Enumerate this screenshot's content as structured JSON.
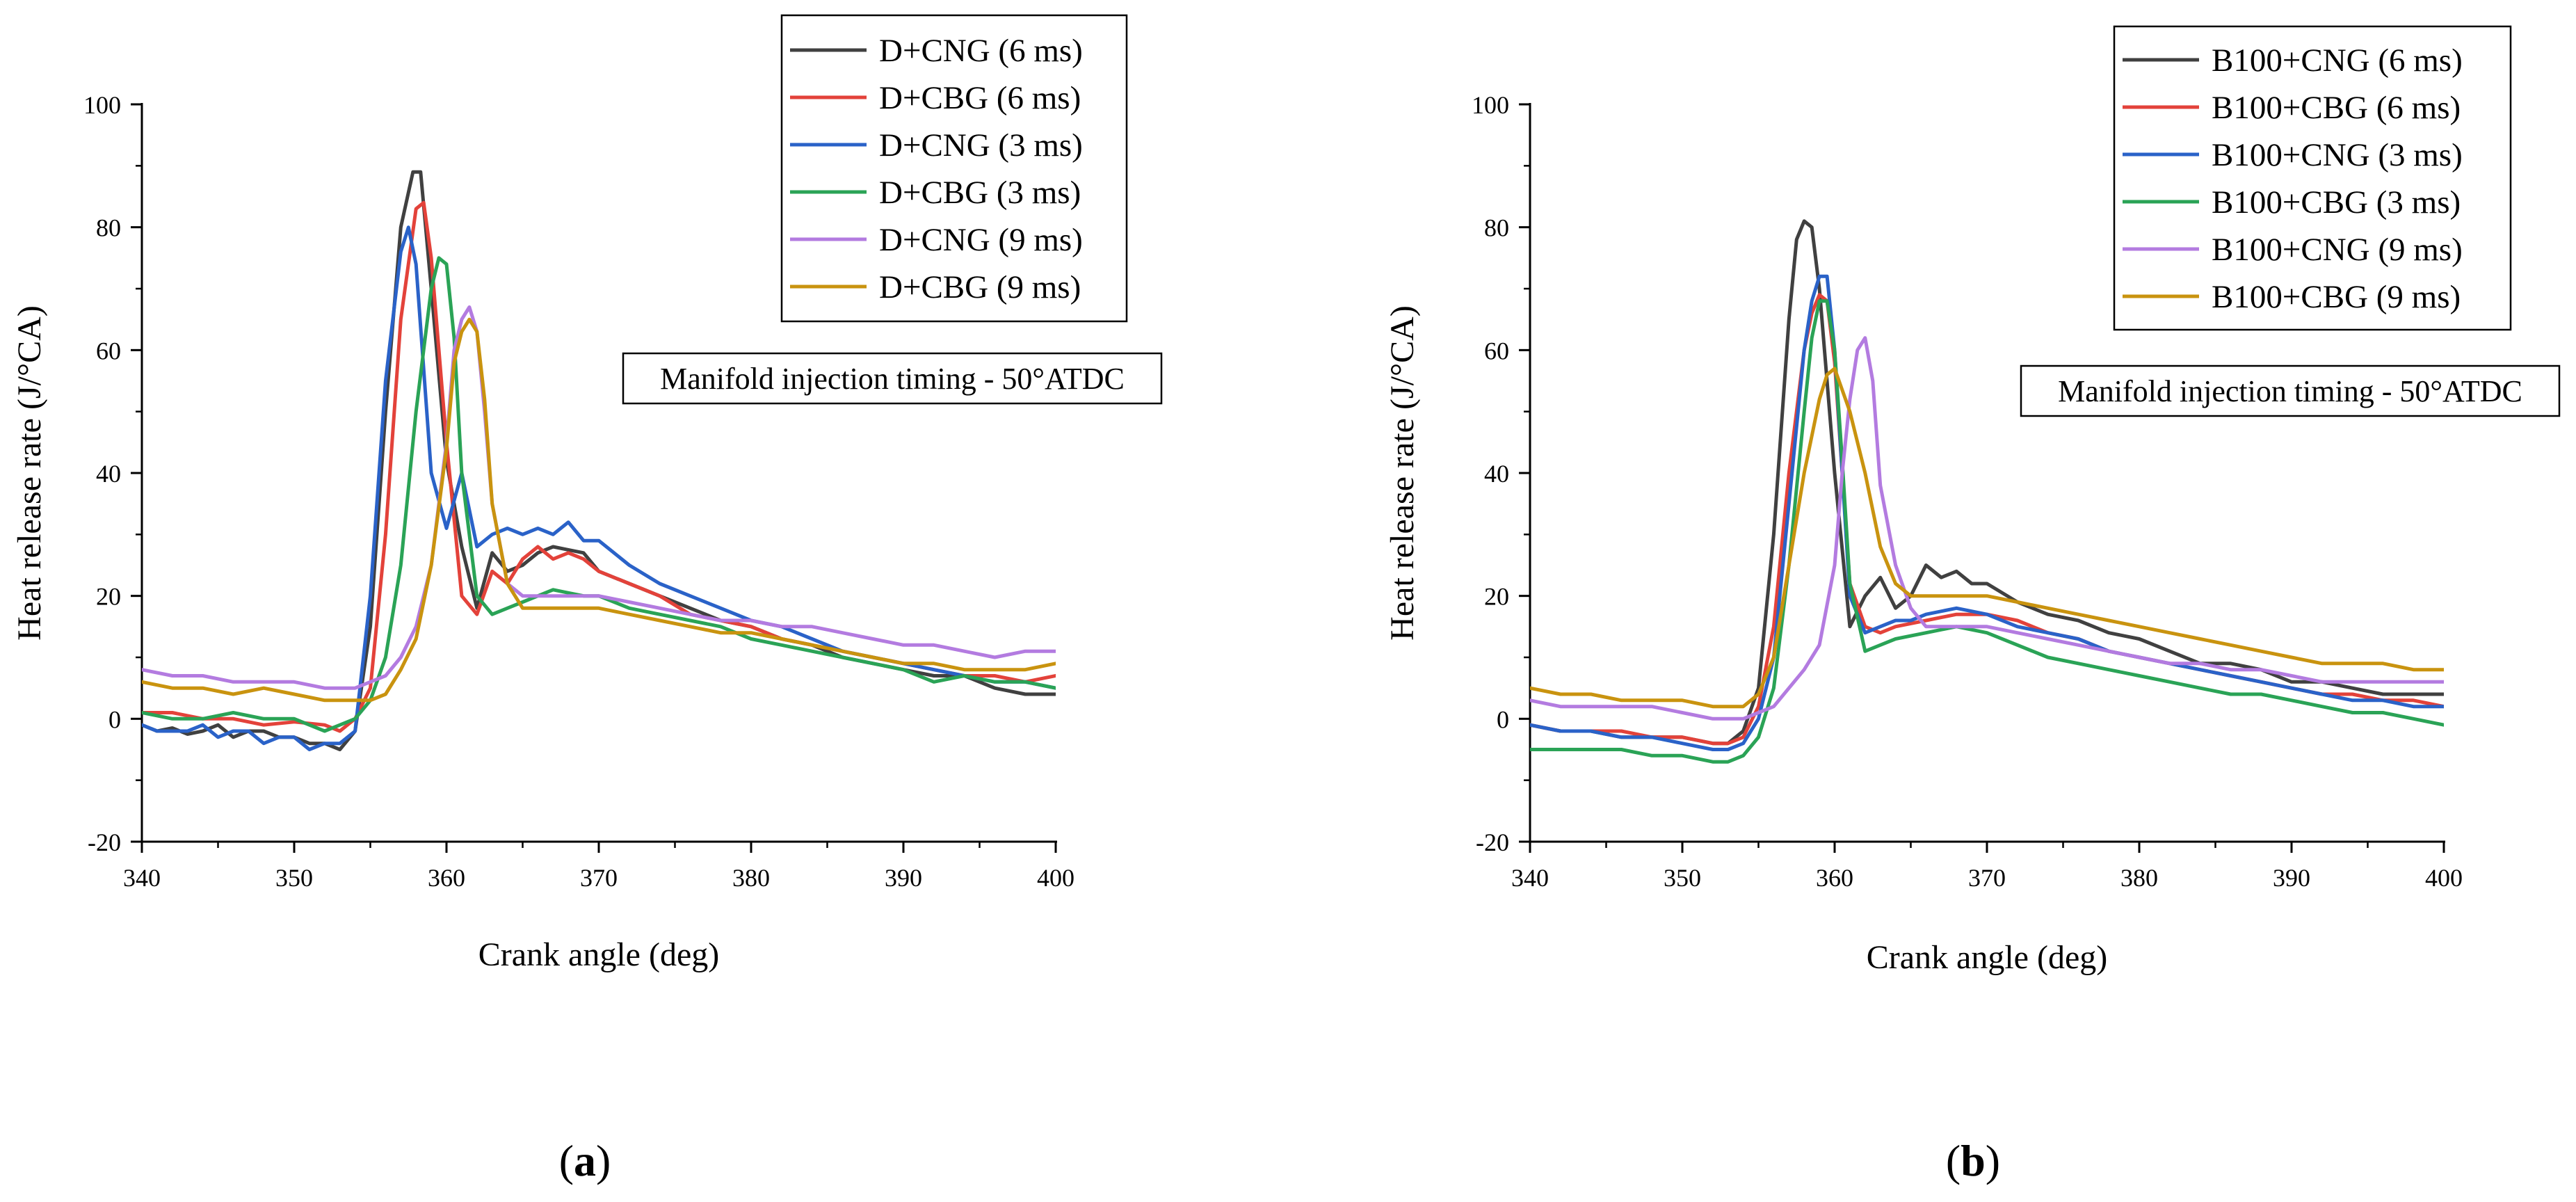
{
  "chart_data": [
    {
      "type": "line",
      "panel_label": "(a)",
      "panel_letter": "a",
      "xlabel": "Crank angle (deg)",
      "ylabel": "Heat release rate (J/°CA)",
      "xlim": [
        340,
        400
      ],
      "ylim": [
        -20,
        100
      ],
      "x_ticks": [
        340,
        350,
        360,
        370,
        380,
        390,
        400
      ],
      "y_ticks": [
        -20,
        0,
        20,
        40,
        60,
        80,
        100
      ],
      "annotation": "Manifold injection timing - 50°ATDC",
      "legend_position": "top-right",
      "series": [
        {
          "name": "D+CNG (6 ms)",
          "color": "#404040",
          "x": [
            340,
            341,
            342,
            343,
            344,
            345,
            346,
            347,
            348,
            349,
            350,
            351,
            352,
            353,
            354,
            355,
            356,
            357,
            357.8,
            358.3,
            359,
            360,
            361,
            362,
            363,
            364,
            365,
            366,
            367,
            368,
            369,
            370,
            372,
            374,
            376,
            378,
            380,
            382,
            384,
            386,
            388,
            390,
            392,
            394,
            396,
            398,
            400
          ],
          "y": [
            -1,
            -2,
            -1.5,
            -2.5,
            -2,
            -1,
            -3,
            -2,
            -2,
            -3,
            -3,
            -4,
            -4,
            -5,
            -2,
            15,
            50,
            80,
            89,
            89,
            70,
            42,
            28,
            18,
            27,
            24,
            25,
            27,
            28,
            27.5,
            27,
            24,
            22,
            20,
            18,
            16,
            15,
            13,
            12,
            10,
            9,
            8,
            7,
            7,
            5,
            4,
            4
          ]
        },
        {
          "name": "D+CBG (6 ms)",
          "color": "#e3423a",
          "x": [
            340,
            342,
            344,
            346,
            348,
            350,
            352,
            353,
            354,
            355,
            356,
            357,
            358,
            358.5,
            359,
            360,
            361,
            362,
            363,
            364,
            365,
            366,
            367,
            368,
            369,
            370,
            372,
            374,
            376,
            378,
            380,
            382,
            384,
            386,
            388,
            390,
            392,
            394,
            396,
            398,
            400
          ],
          "y": [
            1,
            1,
            0,
            0,
            -1,
            -0.5,
            -1,
            -2,
            0,
            5,
            30,
            65,
            83,
            84,
            75,
            45,
            20,
            17,
            24,
            22,
            26,
            28,
            26,
            27,
            26,
            24,
            22,
            20,
            17,
            16,
            15,
            13,
            12,
            11,
            10,
            9,
            8,
            7,
            7,
            6,
            7
          ]
        },
        {
          "name": "D+CNG (3 ms)",
          "color": "#2a62c8",
          "x": [
            340,
            341,
            342,
            343,
            344,
            345,
            346,
            347,
            348,
            349,
            350,
            351,
            352,
            353,
            354,
            355,
            356,
            357,
            357.5,
            358,
            359,
            360,
            361,
            362,
            363,
            364,
            365,
            366,
            367,
            368,
            369,
            370,
            371,
            372,
            374,
            376,
            378,
            380,
            382,
            384,
            386,
            388,
            390,
            392,
            394,
            396,
            398,
            400
          ],
          "y": [
            -1,
            -2,
            -2,
            -2,
            -1,
            -3,
            -2,
            -2,
            -4,
            -3,
            -3,
            -5,
            -4,
            -4,
            -2,
            20,
            55,
            76,
            80,
            74,
            40,
            31,
            40,
            28,
            30,
            31,
            30,
            31,
            30,
            32,
            29,
            29,
            27,
            25,
            22,
            20,
            18,
            16,
            15,
            13,
            11,
            10,
            9,
            8,
            7,
            6,
            6,
            5
          ]
        },
        {
          "name": "D+CBG (3 ms)",
          "color": "#2aa356",
          "x": [
            340,
            342,
            344,
            346,
            348,
            350,
            352,
            353,
            354,
            355,
            356,
            357,
            358,
            359,
            359.5,
            360,
            360.5,
            361,
            362,
            363,
            364,
            365,
            366,
            367,
            368,
            369,
            370,
            372,
            374,
            376,
            378,
            380,
            382,
            384,
            386,
            388,
            390,
            392,
            394,
            396,
            398,
            400
          ],
          "y": [
            1,
            0,
            0,
            1,
            0,
            0,
            -2,
            -1,
            0,
            3,
            10,
            25,
            50,
            70,
            75,
            74,
            62,
            40,
            20,
            17,
            18,
            19,
            20,
            21,
            20.5,
            20,
            20,
            18,
            17,
            16,
            15,
            13,
            12,
            11,
            10,
            9,
            8,
            6,
            7,
            6,
            6,
            5
          ]
        },
        {
          "name": "D+CNG (9 ms)",
          "color": "#b37be0",
          "x": [
            340,
            342,
            344,
            346,
            348,
            350,
            352,
            354,
            355,
            356,
            357,
            358,
            359,
            360,
            360.5,
            361,
            361.5,
            362,
            362.5,
            363,
            364,
            365,
            366,
            368,
            370,
            372,
            374,
            376,
            378,
            380,
            382,
            384,
            386,
            388,
            390,
            392,
            394,
            396,
            398,
            400
          ],
          "y": [
            8,
            7,
            7,
            6,
            6,
            6,
            5,
            5,
            6,
            7,
            10,
            15,
            25,
            45,
            60,
            65,
            67,
            63,
            50,
            35,
            22,
            20,
            20,
            20,
            20,
            19,
            18,
            17,
            16,
            16,
            15,
            15,
            14,
            13,
            12,
            12,
            11,
            10,
            11,
            11
          ]
        },
        {
          "name": "D+CBG (9 ms)",
          "color": "#c9930f",
          "x": [
            340,
            342,
            344,
            346,
            348,
            350,
            352,
            354,
            355,
            356,
            357,
            358,
            359,
            360,
            360.5,
            361,
            361.5,
            362,
            362.5,
            363,
            364,
            365,
            366,
            368,
            370,
            372,
            374,
            376,
            378,
            380,
            382,
            384,
            386,
            388,
            390,
            392,
            394,
            396,
            398,
            400
          ],
          "y": [
            6,
            5,
            5,
            4,
            5,
            4,
            3,
            3,
            3,
            4,
            8,
            13,
            25,
            44,
            58,
            63,
            65,
            63,
            52,
            35,
            22,
            18,
            18,
            18,
            18,
            17,
            16,
            15,
            14,
            14,
            13,
            12,
            11,
            10,
            9,
            9,
            8,
            8,
            8,
            9
          ]
        }
      ]
    },
    {
      "type": "line",
      "panel_label": "(b)",
      "panel_letter": "b",
      "xlabel": "Crank angle (deg)",
      "ylabel": "Heat release rate (J/°CA)",
      "xlim": [
        340,
        400
      ],
      "ylim": [
        -20,
        100
      ],
      "x_ticks": [
        340,
        350,
        360,
        370,
        380,
        390,
        400
      ],
      "y_ticks": [
        -20,
        0,
        20,
        40,
        60,
        80,
        100
      ],
      "annotation": "Manifold injection timing - 50°ATDC",
      "legend_position": "top-right",
      "series": [
        {
          "name": "B100+CNG (6 ms)",
          "color": "#404040",
          "x": [
            340,
            342,
            344,
            346,
            348,
            350,
            352,
            353,
            354,
            355,
            356,
            357,
            357.5,
            358,
            358.5,
            359,
            360,
            361,
            362,
            363,
            364,
            365,
            366,
            367,
            368,
            369,
            370,
            372,
            374,
            376,
            378,
            380,
            382,
            384,
            386,
            388,
            390,
            392,
            394,
            396,
            398,
            400
          ],
          "y": [
            -1,
            -2,
            -2,
            -3,
            -3,
            -3,
            -4,
            -4,
            -2,
            5,
            30,
            65,
            78,
            81,
            80,
            70,
            40,
            15,
            20,
            23,
            18,
            20,
            25,
            23,
            24,
            22,
            22,
            19,
            17,
            16,
            14,
            13,
            11,
            9,
            9,
            8,
            6,
            6,
            5,
            4,
            4,
            4
          ]
        },
        {
          "name": "B100+CBG (6 ms)",
          "color": "#e3423a",
          "x": [
            340,
            342,
            344,
            346,
            348,
            350,
            352,
            353,
            354,
            355,
            356,
            357,
            358,
            358.5,
            359,
            359.5,
            360,
            360.5,
            361,
            362,
            363,
            364,
            366,
            368,
            370,
            372,
            374,
            376,
            378,
            380,
            382,
            384,
            386,
            388,
            390,
            392,
            394,
            396,
            398,
            400
          ],
          "y": [
            -1,
            -2,
            -2,
            -2,
            -3,
            -3,
            -4,
            -4,
            -3,
            2,
            15,
            40,
            60,
            66,
            69,
            68,
            58,
            40,
            22,
            15,
            14,
            15,
            16,
            17,
            17,
            16,
            14,
            13,
            11,
            10,
            9,
            8,
            7,
            6,
            5,
            4,
            4,
            3,
            3,
            2
          ]
        },
        {
          "name": "B100+CNG (3 ms)",
          "color": "#2a62c8",
          "x": [
            340,
            342,
            344,
            346,
            348,
            350,
            352,
            353,
            354,
            355,
            356,
            357,
            358,
            358.5,
            359,
            359.5,
            360,
            360.5,
            361,
            362,
            363,
            364,
            365,
            366,
            368,
            370,
            372,
            374,
            376,
            378,
            380,
            382,
            384,
            386,
            388,
            390,
            392,
            394,
            396,
            398,
            400
          ],
          "y": [
            -1,
            -2,
            -2,
            -3,
            -3,
            -4,
            -5,
            -5,
            -4,
            0,
            10,
            35,
            60,
            68,
            72,
            72,
            60,
            40,
            20,
            14,
            15,
            16,
            16,
            17,
            18,
            17,
            15,
            14,
            13,
            11,
            10,
            9,
            8,
            7,
            6,
            5,
            4,
            3,
            3,
            2,
            2
          ]
        },
        {
          "name": "B100+CBG (3 ms)",
          "color": "#2aa356",
          "x": [
            340,
            342,
            344,
            346,
            348,
            350,
            352,
            353,
            354,
            355,
            356,
            357,
            358,
            358.5,
            359,
            359.5,
            360,
            360.5,
            361,
            362,
            363,
            364,
            366,
            368,
            370,
            372,
            374,
            376,
            378,
            380,
            382,
            384,
            386,
            388,
            390,
            392,
            394,
            396,
            398,
            400
          ],
          "y": [
            -5,
            -5,
            -5,
            -5,
            -6,
            -6,
            -7,
            -7,
            -6,
            -3,
            5,
            25,
            50,
            62,
            68,
            68,
            60,
            42,
            22,
            11,
            12,
            13,
            14,
            15,
            14,
            12,
            10,
            9,
            8,
            7,
            6,
            5,
            4,
            4,
            3,
            2,
            1,
            1,
            0,
            -1
          ]
        },
        {
          "name": "B100+CNG (9 ms)",
          "color": "#b37be0",
          "x": [
            340,
            342,
            344,
            346,
            348,
            350,
            352,
            354,
            355,
            356,
            357,
            358,
            359,
            360,
            360.5,
            361,
            361.5,
            362,
            362.5,
            363,
            364,
            365,
            366,
            368,
            370,
            372,
            374,
            376,
            378,
            380,
            382,
            384,
            386,
            388,
            390,
            392,
            394,
            396,
            398,
            400
          ],
          "y": [
            3,
            2,
            2,
            2,
            2,
            1,
            0,
            0,
            1,
            2,
            5,
            8,
            12,
            25,
            40,
            52,
            60,
            62,
            55,
            38,
            25,
            18,
            15,
            15,
            15,
            14,
            13,
            12,
            11,
            10,
            9,
            9,
            8,
            8,
            7,
            6,
            6,
            6,
            6,
            6
          ]
        },
        {
          "name": "B100+CBG (9 ms)",
          "color": "#c9930f",
          "x": [
            340,
            342,
            344,
            346,
            348,
            350,
            352,
            354,
            355,
            356,
            357,
            358,
            359,
            359.5,
            360,
            361,
            362,
            363,
            364,
            365,
            366,
            368,
            370,
            372,
            374,
            376,
            378,
            380,
            382,
            384,
            386,
            388,
            390,
            392,
            394,
            396,
            398,
            400
          ],
          "y": [
            5,
            4,
            4,
            3,
            3,
            3,
            2,
            2,
            4,
            10,
            25,
            40,
            52,
            56,
            57,
            50,
            40,
            28,
            22,
            20,
            20,
            20,
            20,
            19,
            18,
            17,
            16,
            15,
            14,
            13,
            12,
            11,
            10,
            9,
            9,
            9,
            8,
            8
          ]
        }
      ]
    }
  ]
}
